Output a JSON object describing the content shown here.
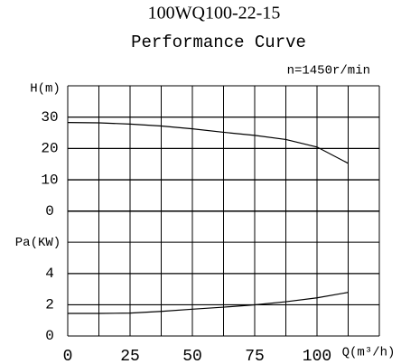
{
  "title": "100WQ100-22-15",
  "subtitle": "Performance Curve",
  "speed": "n=1450r/min",
  "chart_data": [
    {
      "type": "line",
      "y_label": "H(m)",
      "xlim": [
        0,
        125
      ],
      "ylim": [
        0,
        40
      ],
      "yticks": [
        0,
        10,
        20,
        30
      ],
      "x": [
        0,
        12.5,
        25,
        37.5,
        50,
        62.5,
        75,
        87.5,
        100,
        112.5
      ],
      "series": [
        {
          "color": "#000000",
          "values": [
            28.3,
            28.2,
            27.8,
            27.2,
            26.3,
            25.2,
            24.2,
            22.9,
            20.5,
            15.3
          ]
        }
      ]
    },
    {
      "type": "line",
      "y_label": "Pa(KW)",
      "x_label": "Q(m³/h)",
      "xlim": [
        0,
        125
      ],
      "ylim": [
        0,
        8
      ],
      "yticks": [
        0,
        2,
        4
      ],
      "xticks": [
        0,
        25,
        50,
        75,
        100
      ],
      "x": [
        0,
        12.5,
        25,
        37.5,
        50,
        62.5,
        75,
        87.5,
        100,
        112.5
      ],
      "series": [
        {
          "color": "#000000",
          "values": [
            1.45,
            1.45,
            1.47,
            1.58,
            1.72,
            1.85,
            2.0,
            2.2,
            2.45,
            2.8
          ]
        }
      ]
    }
  ]
}
